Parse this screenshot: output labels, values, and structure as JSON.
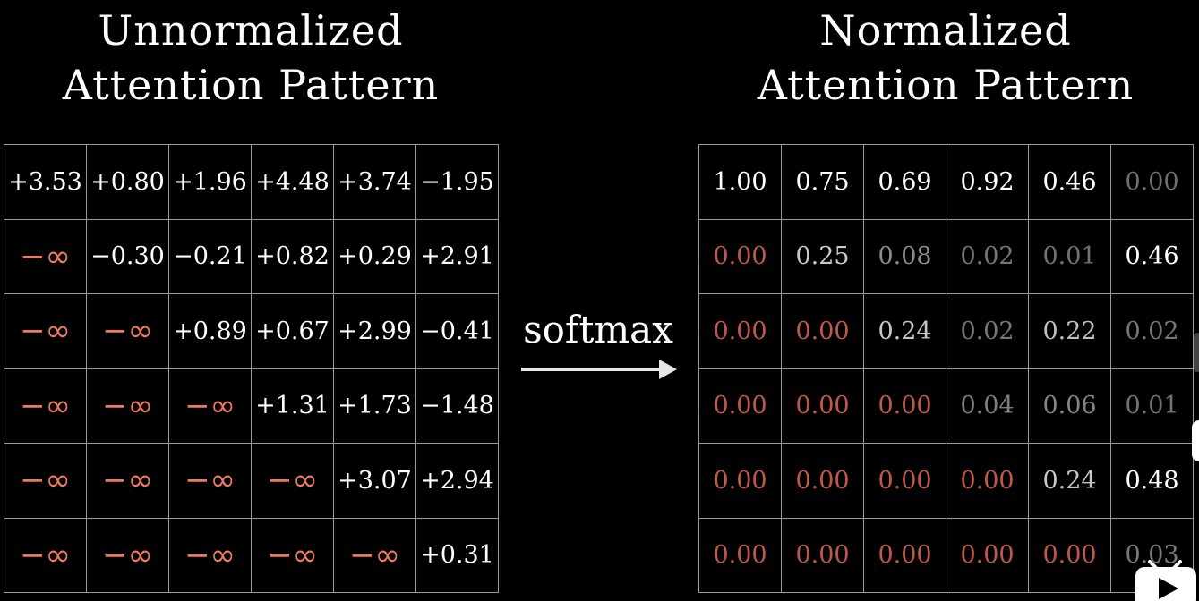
{
  "left_title": [
    "Unnormalized",
    "Attention Pattern"
  ],
  "right_title": [
    "Normalized",
    "Attention Pattern"
  ],
  "operation_label": "softmax",
  "colors": {
    "background": "#000000",
    "grid_line": "#9a9a9a",
    "neg_infinity": "#f0785f",
    "masked_zero": "#c0584a"
  },
  "unnormalized": [
    [
      "+3.53",
      "+0.80",
      "+1.96",
      "+4.48",
      "+3.74",
      "−1.95"
    ],
    [
      "−∞",
      "−0.30",
      "−0.21",
      "+0.82",
      "+0.29",
      "+2.91"
    ],
    [
      "−∞",
      "−∞",
      "+0.89",
      "+0.67",
      "+2.99",
      "−0.41"
    ],
    [
      "−∞",
      "−∞",
      "−∞",
      "+1.31",
      "+1.73",
      "−1.48"
    ],
    [
      "−∞",
      "−∞",
      "−∞",
      "−∞",
      "+3.07",
      "+2.94"
    ],
    [
      "−∞",
      "−∞",
      "−∞",
      "−∞",
      "−∞",
      "+0.31"
    ]
  ],
  "normalized": [
    [
      "1.00",
      "0.75",
      "0.69",
      "0.92",
      "0.46",
      "0.00"
    ],
    [
      "0.00",
      "0.25",
      "0.08",
      "0.02",
      "0.01",
      "0.46"
    ],
    [
      "0.00",
      "0.00",
      "0.24",
      "0.02",
      "0.22",
      "0.02"
    ],
    [
      "0.00",
      "0.00",
      "0.00",
      "0.04",
      "0.06",
      "0.01"
    ],
    [
      "0.00",
      "0.00",
      "0.00",
      "0.00",
      "0.24",
      "0.48"
    ],
    [
      "0.00",
      "0.00",
      "0.00",
      "0.00",
      "0.00",
      "0.03"
    ]
  ],
  "icons": {
    "arrow": "right-arrow-icon",
    "badge": "bilibili-tv-icon"
  }
}
